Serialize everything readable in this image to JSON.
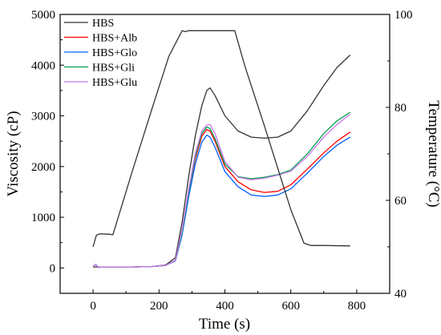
{
  "chart_data": {
    "type": "line",
    "xlabel": "Time (s)",
    "ylabel_left": "Viscosity (cP)",
    "ylabel_right": "Temperature (°C)",
    "xlim": [
      -100,
      900
    ],
    "ylim_left": [
      -500,
      5000
    ],
    "ylim_right": [
      40,
      100
    ],
    "xticks": [
      0,
      200,
      400,
      600,
      800
    ],
    "yticks_left": [
      0,
      1000,
      2000,
      3000,
      4000,
      5000
    ],
    "yticks_right": [
      40,
      60,
      80,
      100
    ],
    "legend_position": "top-left",
    "grid": false,
    "series": [
      {
        "name": "HBS",
        "axis": "left",
        "color": "#333333",
        "x": [
          0,
          15,
          30,
          60,
          120,
          180,
          220,
          250,
          270,
          290,
          310,
          330,
          345,
          355,
          370,
          400,
          440,
          480,
          520,
          560,
          600,
          650,
          700,
          740,
          780
        ],
        "y": [
          20,
          20,
          20,
          20,
          20,
          30,
          60,
          200,
          900,
          1800,
          2600,
          3200,
          3500,
          3550,
          3400,
          3000,
          2700,
          2580,
          2560,
          2580,
          2700,
          3100,
          3600,
          3950,
          4200
        ]
      },
      {
        "name": "HBS+Alb",
        "axis": "left",
        "color": "#ff0000",
        "x": [
          0,
          8,
          15,
          25,
          60,
          120,
          180,
          220,
          250,
          270,
          290,
          310,
          330,
          345,
          355,
          370,
          400,
          440,
          480,
          520,
          560,
          600,
          650,
          700,
          740,
          780
        ],
        "y": [
          30,
          70,
          10,
          20,
          20,
          20,
          30,
          50,
          150,
          700,
          1500,
          2150,
          2600,
          2730,
          2700,
          2500,
          2000,
          1700,
          1540,
          1490,
          1510,
          1640,
          1950,
          2270,
          2500,
          2680
        ]
      },
      {
        "name": "HBS+Glo",
        "axis": "left",
        "color": "#0060ff",
        "x": [
          0,
          8,
          15,
          25,
          60,
          120,
          180,
          220,
          250,
          270,
          290,
          310,
          330,
          345,
          355,
          370,
          400,
          440,
          480,
          520,
          560,
          600,
          650,
          700,
          740,
          780
        ],
        "y": [
          30,
          70,
          10,
          20,
          20,
          20,
          30,
          50,
          140,
          650,
          1400,
          2050,
          2480,
          2620,
          2580,
          2380,
          1900,
          1600,
          1440,
          1410,
          1440,
          1560,
          1870,
          2200,
          2420,
          2580
        ]
      },
      {
        "name": "HBS+Gli",
        "axis": "left",
        "color": "#00a050",
        "x": [
          0,
          8,
          15,
          25,
          60,
          120,
          180,
          220,
          250,
          270,
          290,
          310,
          330,
          345,
          355,
          370,
          400,
          440,
          480,
          520,
          560,
          600,
          650,
          700,
          740,
          780
        ],
        "y": [
          30,
          70,
          10,
          20,
          20,
          20,
          30,
          50,
          150,
          700,
          1500,
          2200,
          2650,
          2780,
          2750,
          2550,
          2050,
          1800,
          1760,
          1790,
          1840,
          1930,
          2250,
          2650,
          2900,
          3070
        ]
      },
      {
        "name": "HBS+Glu",
        "axis": "left",
        "color": "#cc77ee",
        "x": [
          0,
          8,
          15,
          25,
          60,
          120,
          180,
          220,
          250,
          270,
          290,
          310,
          330,
          345,
          355,
          370,
          400,
          440,
          480,
          520,
          560,
          600,
          650,
          700,
          740,
          780
        ],
        "y": [
          30,
          70,
          10,
          20,
          20,
          20,
          30,
          50,
          150,
          750,
          1550,
          2250,
          2700,
          2820,
          2830,
          2650,
          2100,
          1790,
          1740,
          1770,
          1830,
          1910,
          2200,
          2580,
          2830,
          3030
        ]
      },
      {
        "name": "",
        "axis": "right",
        "color": "#333333",
        "x": [
          0,
          10,
          20,
          50,
          60,
          120,
          180,
          230,
          270,
          280,
          290,
          330,
          400,
          430,
          460,
          520,
          600,
          640,
          660,
          700,
          780
        ],
        "y": [
          50,
          52.5,
          52.8,
          52.7,
          52.6,
          66.5,
          80,
          91,
          96.5,
          96.3,
          96.5,
          96.5,
          96.5,
          96.5,
          89,
          76,
          58,
          50.8,
          50.3,
          50.3,
          50.2
        ]
      }
    ]
  }
}
